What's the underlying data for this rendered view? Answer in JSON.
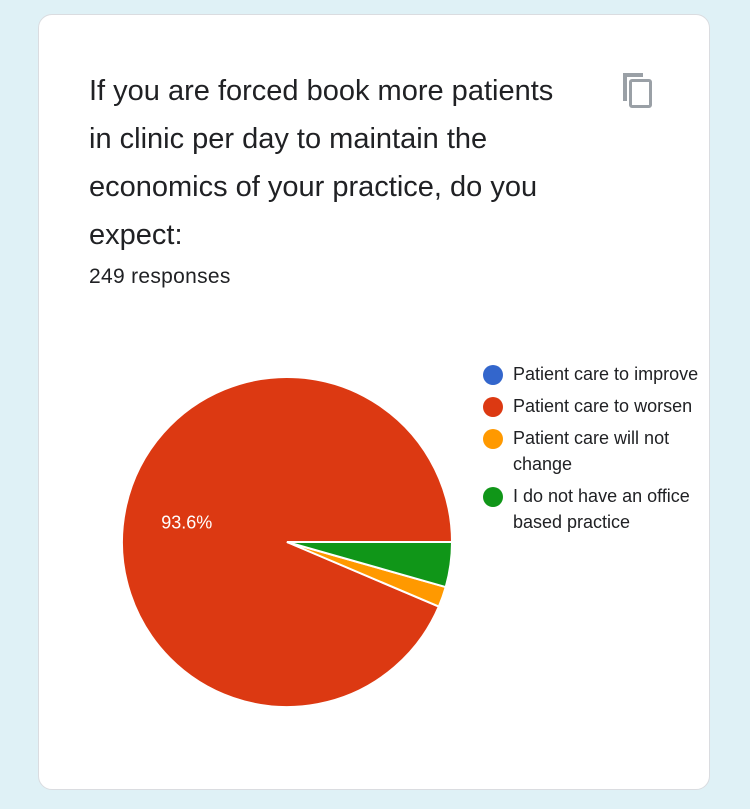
{
  "question": {
    "title": "If you are forced book more patients in clinic per day to maintain the economics of your practice, do you expect:",
    "response_count": "249 responses"
  },
  "icons": {
    "copy": "copy-icon"
  },
  "chart_data": {
    "type": "pie",
    "title": "",
    "categories": [
      "Patient care to improve",
      "Patient care to worsen",
      "Patient care will not change",
      "I do not have an office based practice"
    ],
    "values": [
      0,
      93.6,
      2.0,
      4.4
    ],
    "slice_labels": [
      "",
      "93.6%",
      "",
      ""
    ],
    "colors": [
      "#3366cc",
      "#dc3912",
      "#ff9900",
      "#109618"
    ],
    "legend_position": "right"
  }
}
